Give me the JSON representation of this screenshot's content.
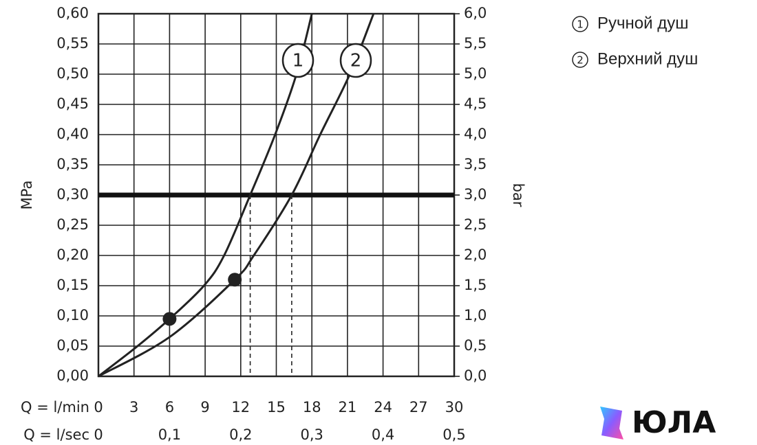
{
  "chart_data": {
    "type": "line",
    "ylabel": "MPa",
    "y2label": "bar",
    "xlabel": "Q = l/min",
    "x2label": "Q = l/sec",
    "xlim": [
      0,
      30
    ],
    "xticks": [
      0,
      3,
      6,
      9,
      12,
      15,
      18,
      21,
      24,
      27,
      30
    ],
    "x2lim": [
      0,
      0.5
    ],
    "x2ticks": [
      0,
      {
        "value": 0.1,
        "label": "0,1"
      },
      {
        "value": 0.2,
        "label": "0,2"
      },
      {
        "value": 0.3,
        "label": "0,3"
      },
      {
        "value": 0.4,
        "label": "0,4"
      },
      {
        "value": 0.5,
        "label": "0,5"
      }
    ],
    "ylim": [
      0,
      0.6
    ],
    "yticks": [
      {
        "value": 0,
        "label": "0,00"
      },
      {
        "value": 0.05,
        "label": "0,05"
      },
      {
        "value": 0.1,
        "label": "0,10"
      },
      {
        "value": 0.15,
        "label": "0,15"
      },
      {
        "value": 0.2,
        "label": "0,20"
      },
      {
        "value": 0.25,
        "label": "0,25"
      },
      {
        "value": 0.3,
        "label": "0,30"
      },
      {
        "value": 0.35,
        "label": "0,35"
      },
      {
        "value": 0.4,
        "label": "0,40"
      },
      {
        "value": 0.45,
        "label": "0,45"
      },
      {
        "value": 0.5,
        "label": "0,50"
      },
      {
        "value": 0.55,
        "label": "0,55"
      },
      {
        "value": 0.6,
        "label": "0,60"
      }
    ],
    "y2lim": [
      0,
      6
    ],
    "y2ticks": [
      {
        "value": 0,
        "label": "0,0"
      },
      {
        "value": 0.5,
        "label": "0,5"
      },
      {
        "value": 1,
        "label": "1,0"
      },
      {
        "value": 1.5,
        "label": "1,5"
      },
      {
        "value": 2,
        "label": "2,0"
      },
      {
        "value": 2.5,
        "label": "2,5"
      },
      {
        "value": 3,
        "label": "3,0"
      },
      {
        "value": 3.5,
        "label": "3,5"
      },
      {
        "value": 4,
        "label": "4,0"
      },
      {
        "value": 4.5,
        "label": "4,5"
      },
      {
        "value": 5,
        "label": "5,0"
      },
      {
        "value": 5.5,
        "label": "5,5"
      },
      {
        "value": 6,
        "label": "6,0"
      }
    ],
    "grid": true,
    "reference_line": 0.3,
    "dashed_x": [
      12.8,
      16.3
    ],
    "series": [
      {
        "name": "Ручной душ",
        "label": "1",
        "color": "#222222",
        "x": [
          0,
          3.3,
          6,
          8.9,
          10.6,
          12.8,
          14.9,
          16.7,
          18.0
        ],
        "values": [
          0,
          0.05,
          0.095,
          0.15,
          0.2,
          0.3,
          0.4,
          0.5,
          0.6
        ],
        "marker": {
          "x": 6,
          "y": 0.095
        }
      },
      {
        "name": "Верхний душ",
        "label": "2",
        "color": "#222222",
        "x": [
          0,
          6,
          11.5,
          13.1,
          16.3,
          18.7,
          21.2,
          23.2
        ],
        "values": [
          0,
          0.065,
          0.16,
          0.2,
          0.3,
          0.4,
          0.5,
          0.6
        ],
        "marker": {
          "x": 11.5,
          "y": 0.16
        }
      }
    ],
    "watermark": "ЮЛА"
  }
}
